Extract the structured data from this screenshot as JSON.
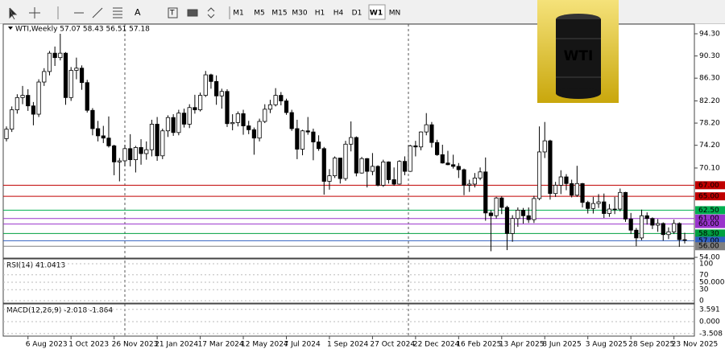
{
  "chart_data": {
    "type": "candlestick",
    "title": "WTI,Weekly  57.07 58.43 56.51 57.18",
    "timeframes": [
      "M1",
      "M5",
      "M15",
      "M30",
      "H1",
      "H4",
      "D1",
      "W1",
      "MN"
    ],
    "active_timeframe": "W1",
    "image_label": "WTI",
    "categories": [
      null,
      null,
      null,
      null,
      "6 Aug 2023",
      null,
      null,
      null,
      null,
      null,
      null,
      null,
      "1 Oct 2023",
      null,
      null,
      null,
      null,
      null,
      null,
      null,
      "26 Nov 2023",
      null,
      null,
      null,
      null,
      null,
      null,
      null,
      "21 Jan 2024",
      null,
      null,
      null,
      null,
      null,
      null,
      null,
      "17 Mar 2024",
      null,
      null,
      null,
      null,
      null,
      null,
      null,
      "12 May 2024",
      null,
      null,
      null,
      null,
      null,
      null,
      null,
      "7 Jul 2024",
      null,
      null,
      null,
      null,
      null,
      null,
      null,
      "1 Sep 2024",
      null,
      null,
      null,
      null,
      null,
      null,
      null,
      "27 Oct 2024",
      null,
      null,
      null,
      null,
      null,
      null,
      null,
      "22 Dec 2024",
      null,
      null,
      null,
      null,
      null,
      null,
      null,
      "16 Feb 2025",
      null,
      null,
      null,
      null,
      null,
      null,
      null,
      "13 Apr 2025",
      null,
      null,
      null,
      null,
      null,
      null,
      null,
      "8 Jun 2025",
      null,
      null,
      null,
      null,
      null,
      null,
      null,
      "3 Aug 2025",
      null,
      null,
      null,
      null,
      null,
      null,
      null,
      "28 Sep 2025",
      null,
      null,
      null,
      null,
      null,
      null,
      null,
      "23 Nov 2025",
      null,
      null
    ],
    "ohlc": [
      [
        75.4,
        77.6,
        74.9,
        77.1
      ],
      [
        77.1,
        81.2,
        76.6,
        80.6
      ],
      [
        80.6,
        83.4,
        79.9,
        82.8
      ],
      [
        82.8,
        84.9,
        81.6,
        83.2
      ],
      [
        83.2,
        84.3,
        80.4,
        81.3
      ],
      [
        81.3,
        82.0,
        77.8,
        79.8
      ],
      [
        79.8,
        86.1,
        79.3,
        85.6
      ],
      [
        85.6,
        88.1,
        84.9,
        87.5
      ],
      [
        87.5,
        91.2,
        86.8,
        90.8
      ],
      [
        90.8,
        92.0,
        88.5,
        90.0
      ],
      [
        90.0,
        94.3,
        89.5,
        90.8
      ],
      [
        90.8,
        91.0,
        81.5,
        82.8
      ],
      [
        82.8,
        88.3,
        82.2,
        87.7
      ],
      [
        87.7,
        90.0,
        86.1,
        88.1
      ],
      [
        88.1,
        88.6,
        84.2,
        85.5
      ],
      [
        85.5,
        86.0,
        80.1,
        80.5
      ],
      [
        80.5,
        80.9,
        76.0,
        77.2
      ],
      [
        77.2,
        78.6,
        74.9,
        75.9
      ],
      [
        75.9,
        77.7,
        74.6,
        75.5
      ],
      [
        75.5,
        79.4,
        73.8,
        74.1
      ],
      [
        74.1,
        74.3,
        68.8,
        71.2
      ],
      [
        71.2,
        71.9,
        67.7,
        71.4
      ],
      [
        71.4,
        74.3,
        70.4,
        73.6
      ],
      [
        73.6,
        76.2,
        70.4,
        71.6
      ],
      [
        71.6,
        74.1,
        69.3,
        73.8
      ],
      [
        73.8,
        75.3,
        70.7,
        72.7
      ],
      [
        72.7,
        74.9,
        71.6,
        73.4
      ],
      [
        73.4,
        78.8,
        72.2,
        78.0
      ],
      [
        78.0,
        79.3,
        71.4,
        72.3
      ],
      [
        72.3,
        77.2,
        71.7,
        76.8
      ],
      [
        76.8,
        79.6,
        75.7,
        79.2
      ],
      [
        79.2,
        79.8,
        75.9,
        76.5
      ],
      [
        76.5,
        80.6,
        76.0,
        80.0
      ],
      [
        80.0,
        80.8,
        77.4,
        78.0
      ],
      [
        78.0,
        81.6,
        77.3,
        81.0
      ],
      [
        81.0,
        83.3,
        79.9,
        80.6
      ],
      [
        80.6,
        83.7,
        80.3,
        83.2
      ],
      [
        83.2,
        87.6,
        82.9,
        86.9
      ],
      [
        86.9,
        87.1,
        84.4,
        85.7
      ],
      [
        85.7,
        86.8,
        81.5,
        83.1
      ],
      [
        83.1,
        84.4,
        80.8,
        83.9
      ],
      [
        83.9,
        84.3,
        77.5,
        78.1
      ],
      [
        78.1,
        79.8,
        76.9,
        78.3
      ],
      [
        78.3,
        80.3,
        77.6,
        79.9
      ],
      [
        79.9,
        80.6,
        76.1,
        77.7
      ],
      [
        77.7,
        78.6,
        76.2,
        77.0
      ],
      [
        77.0,
        77.4,
        72.5,
        75.5
      ],
      [
        75.5,
        79.0,
        74.9,
        78.5
      ],
      [
        78.5,
        81.6,
        78.2,
        80.7
      ],
      [
        80.7,
        82.4,
        80.0,
        81.5
      ],
      [
        81.5,
        84.5,
        81.2,
        83.2
      ],
      [
        83.2,
        83.8,
        81.4,
        82.2
      ],
      [
        82.2,
        82.6,
        79.7,
        80.1
      ],
      [
        80.1,
        80.6,
        76.8,
        77.2
      ],
      [
        77.2,
        78.8,
        71.7,
        73.5
      ],
      [
        73.5,
        77.0,
        72.4,
        76.8
      ],
      [
        76.8,
        79.3,
        76.1,
        76.6
      ],
      [
        76.6,
        77.2,
        71.5,
        74.8
      ],
      [
        74.8,
        76.0,
        73.2,
        73.6
      ],
      [
        73.6,
        73.9,
        65.3,
        67.7
      ],
      [
        67.7,
        69.9,
        66.2,
        68.7
      ],
      [
        68.7,
        72.2,
        68.3,
        71.9
      ],
      [
        71.9,
        71.9,
        67.3,
        68.2
      ],
      [
        68.2,
        75.0,
        67.8,
        74.4
      ],
      [
        74.4,
        78.5,
        73.1,
        75.6
      ],
      [
        75.6,
        75.8,
        68.6,
        69.2
      ],
      [
        69.2,
        72.1,
        69.1,
        71.8
      ],
      [
        71.8,
        71.9,
        66.6,
        69.5
      ],
      [
        69.5,
        72.8,
        68.8,
        70.4
      ],
      [
        70.4,
        70.6,
        66.8,
        67.0
      ],
      [
        67.0,
        71.6,
        66.7,
        71.2
      ],
      [
        71.2,
        71.3,
        67.3,
        68.0
      ],
      [
        68.0,
        70.2,
        66.9,
        67.2
      ],
      [
        67.2,
        71.5,
        67.1,
        71.3
      ],
      [
        71.3,
        72.2,
        68.8,
        69.5
      ],
      [
        69.5,
        74.3,
        69.4,
        74.1
      ],
      [
        74.1,
        75.0,
        72.2,
        73.9
      ],
      [
        73.9,
        76.7,
        73.3,
        76.6
      ],
      [
        76.6,
        80.0,
        76.0,
        77.9
      ],
      [
        77.9,
        78.4,
        73.8,
        74.7
      ],
      [
        74.7,
        75.2,
        72.3,
        72.5
      ],
      [
        72.5,
        74.3,
        70.9,
        71.0
      ],
      [
        71.0,
        73.2,
        70.6,
        70.7
      ],
      [
        70.7,
        72.5,
        70.0,
        70.4
      ],
      [
        70.4,
        71.0,
        68.3,
        69.8
      ],
      [
        69.8,
        70.0,
        65.2,
        67.0
      ],
      [
        67.0,
        68.0,
        65.8,
        67.2
      ],
      [
        67.2,
        69.2,
        66.6,
        68.3
      ],
      [
        68.3,
        70.2,
        67.9,
        69.4
      ],
      [
        69.4,
        72.0,
        60.6,
        62.0
      ],
      [
        62.0,
        62.5,
        55.1,
        61.5
      ],
      [
        61.5,
        64.9,
        61.0,
        64.7
      ],
      [
        64.7,
        65.0,
        61.8,
        63.0
      ],
      [
        63.0,
        63.3,
        55.3,
        58.3
      ],
      [
        58.3,
        61.6,
        56.8,
        61.0
      ],
      [
        61.0,
        63.0,
        59.5,
        62.5
      ],
      [
        62.5,
        62.9,
        60.1,
        61.5
      ],
      [
        61.5,
        63.0,
        60.2,
        60.8
      ],
      [
        60.8,
        65.1,
        60.2,
        64.6
      ],
      [
        64.6,
        77.6,
        64.3,
        73.0
      ],
      [
        73.0,
        78.4,
        71.9,
        75.0
      ],
      [
        75.0,
        75.2,
        64.4,
        65.5
      ],
      [
        65.5,
        67.6,
        64.9,
        67.0
      ],
      [
        67.0,
        69.7,
        65.4,
        68.5
      ],
      [
        68.5,
        69.0,
        66.1,
        67.3
      ],
      [
        67.3,
        68.0,
        64.8,
        65.2
      ],
      [
        65.2,
        70.5,
        64.9,
        67.3
      ],
      [
        67.3,
        67.4,
        63.0,
        63.9
      ],
      [
        63.9,
        64.2,
        61.9,
        62.8
      ],
      [
        62.8,
        64.9,
        61.9,
        63.7
      ],
      [
        63.7,
        65.4,
        62.9,
        64.0
      ],
      [
        64.0,
        65.5,
        61.1,
        61.9
      ],
      [
        61.9,
        63.6,
        61.3,
        62.7
      ],
      [
        62.7,
        64.9,
        61.8,
        62.7
      ],
      [
        62.7,
        66.4,
        62.3,
        65.7
      ],
      [
        65.7,
        65.8,
        60.4,
        60.9
      ],
      [
        60.9,
        62.0,
        58.2,
        58.9
      ],
      [
        58.9,
        59.3,
        56.0,
        57.5
      ],
      [
        57.5,
        62.6,
        57.1,
        61.5
      ],
      [
        61.5,
        62.1,
        59.9,
        61.0
      ],
      [
        61.0,
        61.2,
        59.1,
        59.8
      ],
      [
        59.8,
        60.9,
        58.6,
        60.1
      ],
      [
        60.1,
        60.3,
        57.0,
        58.1
      ],
      [
        58.1,
        59.4,
        57.3,
        58.6
      ],
      [
        58.6,
        60.8,
        58.2,
        60.1
      ],
      [
        60.1,
        60.3,
        55.9,
        57.2
      ],
      [
        57.07,
        58.43,
        56.51,
        57.18
      ]
    ],
    "up_color": "#ffffff",
    "down_color": "#000000",
    "ylim": [
      53.86,
      96.04
    ],
    "yticks": [
      {
        "value": 94.3,
        "label": "94.30"
      },
      {
        "value": 90.3,
        "label": "90.30"
      },
      {
        "value": 86.3,
        "label": "86.30"
      },
      {
        "value": 82.2,
        "label": "82.20"
      },
      {
        "value": 78.2,
        "label": "78.20"
      },
      {
        "value": 74.2,
        "label": "74.20"
      },
      {
        "value": 70.1,
        "label": "70.10"
      },
      {
        "value": 54,
        "label": "54.00"
      }
    ],
    "levels": [
      {
        "value": 67,
        "label": "67.00",
        "color": "#c00000"
      },
      {
        "value": 65,
        "label": "65.00",
        "color": "#c00000"
      },
      {
        "value": 62.5,
        "label": "62.50",
        "color": "#00b050"
      },
      {
        "value": 61,
        "label": "61.00",
        "color": "#9933cc"
      },
      {
        "value": 60,
        "label": "60.00",
        "color": "#9933cc"
      },
      {
        "value": 58.3,
        "label": "58.30",
        "color": "#00a040"
      },
      {
        "value": 57,
        "label": "57.00",
        "color": "#3060c0"
      },
      {
        "value": 56,
        "label": "56.00",
        "color": "#808080"
      }
    ],
    "rsi": {
      "title": "RSI(14) 41.0413",
      "ylim": [
        0,
        100
      ],
      "yticks": [
        100,
        70,
        {
          "value": 50,
          "label": "50.000"
        },
        30,
        0
      ]
    },
    "macd": {
      "title": "MACD(12,26,9) -2.018 -1.864",
      "ylim": [
        -4.02,
        5.2
      ],
      "yticks": [
        3.591,
        {
          "value": 0,
          "label": "0.000"
        },
        -3.508
      ]
    }
  }
}
